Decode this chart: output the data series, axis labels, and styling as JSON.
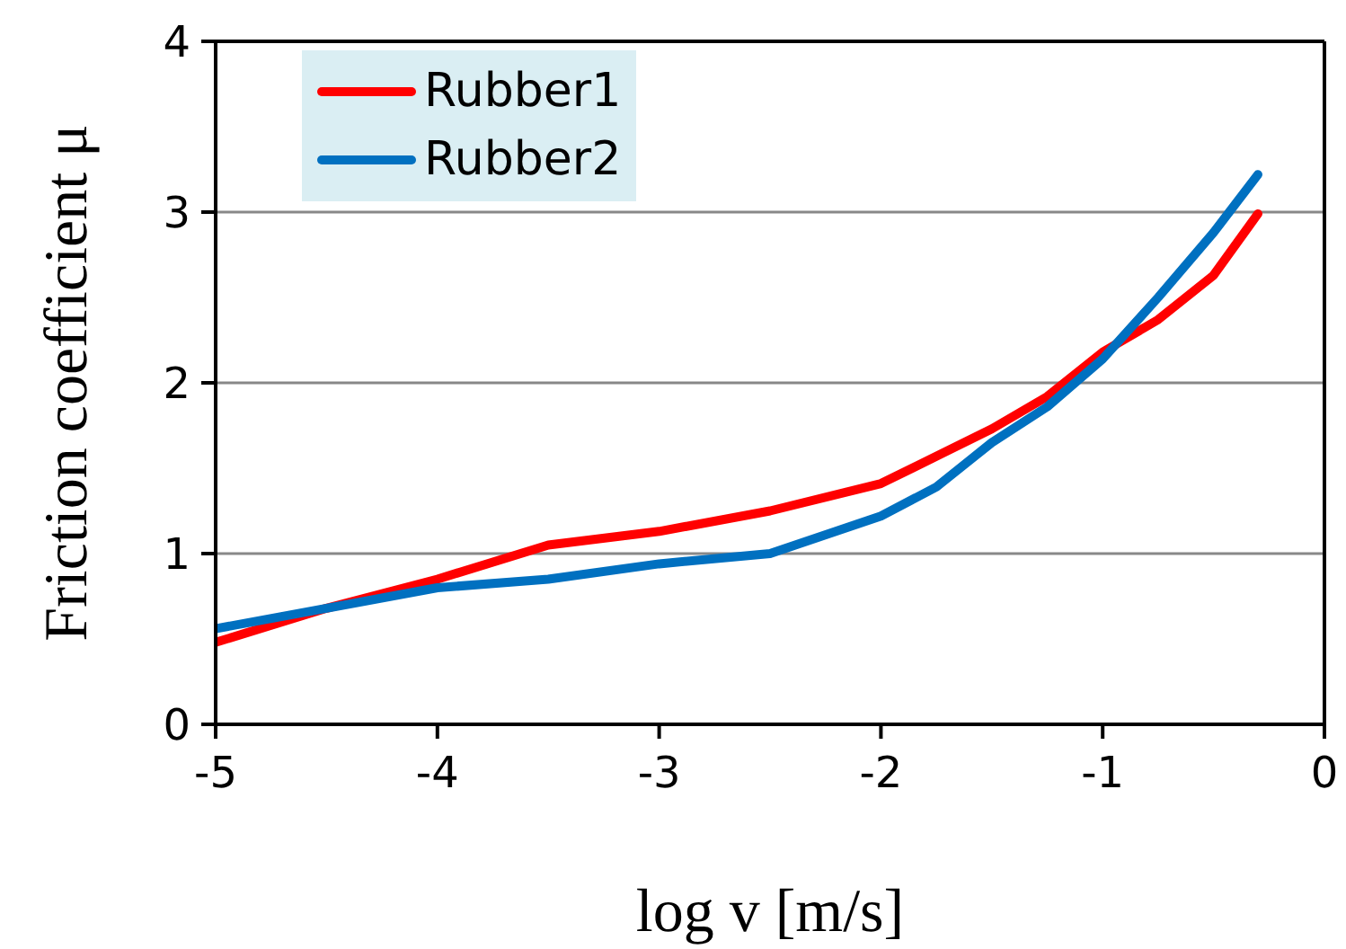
{
  "chart_data": {
    "type": "line",
    "xlabel": "log v [m/s]",
    "ylabel": "Friction coefficient μ",
    "xlim": [
      -5,
      0
    ],
    "xticks": [
      -5,
      -4,
      -3,
      -2,
      -1,
      0
    ],
    "ylim": [
      0,
      4
    ],
    "yticks": [
      0,
      1,
      2,
      3,
      4
    ],
    "grid": "y",
    "legend": "top left",
    "marker": "none",
    "line_style": "solid",
    "series": [
      {
        "name": "Rubber1",
        "color": "#ff0000",
        "x": [
          -5,
          -4.5,
          -4,
          -3.5,
          -3,
          -2.5,
          -2,
          -1.5,
          -1.25,
          -1,
          -0.75,
          -0.5,
          -0.3
        ],
        "values": [
          0.48,
          0.68,
          0.85,
          1.05,
          1.13,
          1.25,
          1.41,
          1.73,
          1.92,
          2.18,
          2.37,
          2.63,
          2.99
        ]
      },
      {
        "name": "Rubber2",
        "color": "#0070c0",
        "x": [
          -5,
          -4.5,
          -4,
          -3.5,
          -3,
          -2.5,
          -2,
          -1.75,
          -1.5,
          -1.25,
          -1,
          -0.75,
          -0.5,
          -0.3
        ],
        "values": [
          0.56,
          0.68,
          0.8,
          0.85,
          0.94,
          1.0,
          1.22,
          1.39,
          1.65,
          1.86,
          2.14,
          2.5,
          2.88,
          3.22
        ]
      }
    ]
  }
}
